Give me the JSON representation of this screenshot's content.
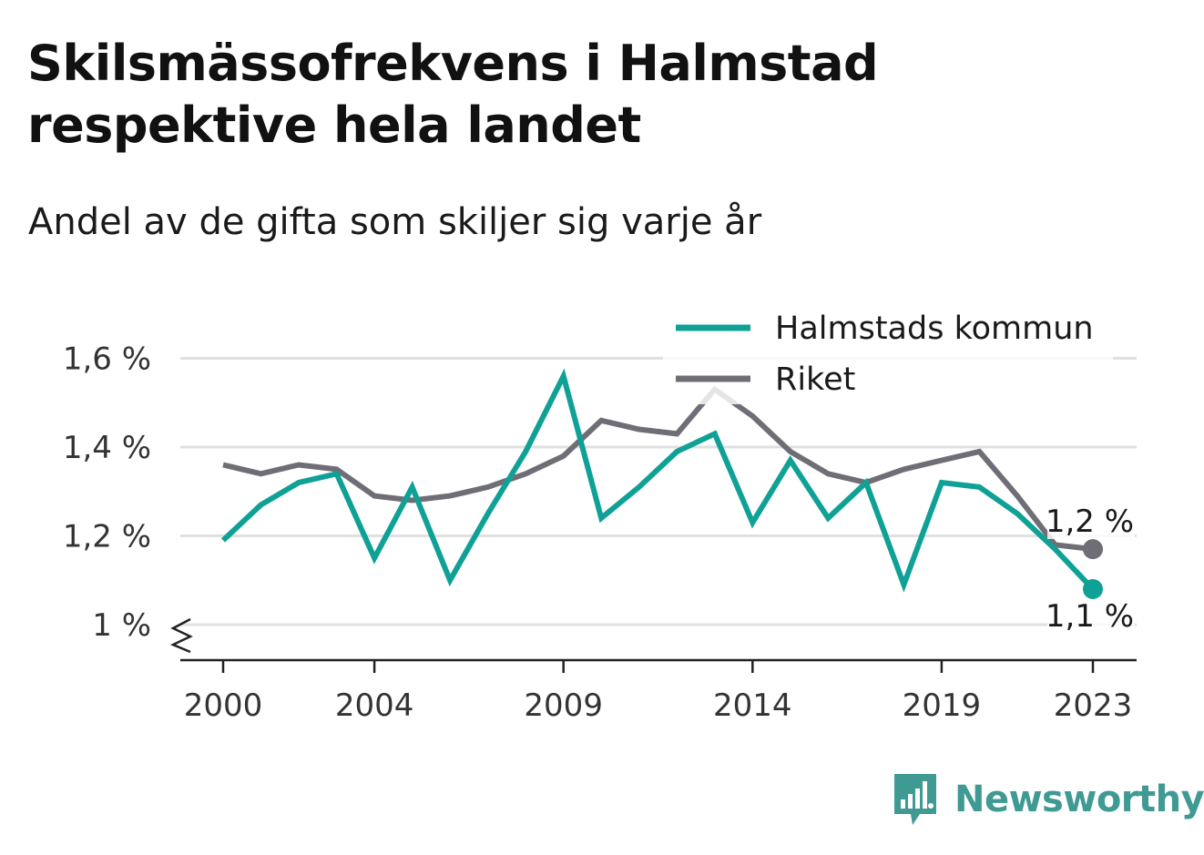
{
  "title": "Skilsmässofrekvens i Halmstad respektive hela landet",
  "subtitle": "Andel av de gifta som skiljer sig varje år",
  "brand": "Newsworthy",
  "colors": {
    "halmstad": "#0fa195",
    "riket": "#6f6e76",
    "grid": "#e0e0e0",
    "brand": "#3f9a93"
  },
  "chart_data": {
    "type": "line",
    "x": [
      2000,
      2001,
      2002,
      2003,
      2004,
      2005,
      2006,
      2007,
      2008,
      2009,
      2010,
      2011,
      2012,
      2013,
      2014,
      2015,
      2016,
      2017,
      2018,
      2019,
      2020,
      2021,
      2022,
      2023
    ],
    "x_ticks": [
      2000,
      2004,
      2009,
      2014,
      2019,
      2023
    ],
    "y_ticks": [
      1.0,
      1.2,
      1.4,
      1.6
    ],
    "y_tick_labels": [
      "1 %",
      "1,2 %",
      "1,4 %",
      "1,6 %"
    ],
    "ylim": [
      0.92,
      1.62
    ],
    "y_axis_break": true,
    "grid": true,
    "legend_position": "top-right",
    "series": [
      {
        "name": "Halmstads kommun",
        "values": [
          1.19,
          1.27,
          1.32,
          1.34,
          1.15,
          1.31,
          1.1,
          1.25,
          1.39,
          1.56,
          1.24,
          1.31,
          1.39,
          1.43,
          1.23,
          1.37,
          1.24,
          1.32,
          1.09,
          1.32,
          1.31,
          1.25,
          1.17,
          1.08
        ],
        "end_label": "1,1 %"
      },
      {
        "name": "Riket",
        "values": [
          1.36,
          1.34,
          1.36,
          1.35,
          1.29,
          1.28,
          1.29,
          1.31,
          1.34,
          1.38,
          1.46,
          1.44,
          1.43,
          1.53,
          1.47,
          1.39,
          1.34,
          1.32,
          1.35,
          1.37,
          1.39,
          1.29,
          1.18,
          1.17
        ],
        "end_label": "1,2 %"
      }
    ]
  }
}
